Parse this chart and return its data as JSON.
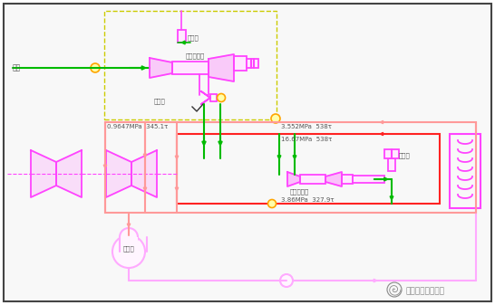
{
  "bg": "#ffffff",
  "border": "#444444",
  "pink": "#FF44FF",
  "lpink": "#FFAAFF",
  "red": "#FF2222",
  "lred": "#FF9999",
  "green": "#00BB00",
  "yellow": "#CCCC00",
  "orange": "#FFA500",
  "gray": "#555555",
  "lgray": "#888888",
  "title": "清洁高效燃煤发电",
  "lbl_steam": "供热",
  "lbl_jts1": "减温水",
  "lbl_jts2": "减温水",
  "lbl_valve": "调节阀",
  "lbl_ej1": "汽汽引射器",
  "lbl_ej2": "汽汽引射器",
  "lbl_deaer": "除氧器",
  "lbl_p1": "0.9647MPa  345.1τ",
  "lbl_p2": "3.552MPa  538τ",
  "lbl_p3": "16.67MPa  538τ",
  "lbl_p4": "3.86MPa  327.9τ"
}
